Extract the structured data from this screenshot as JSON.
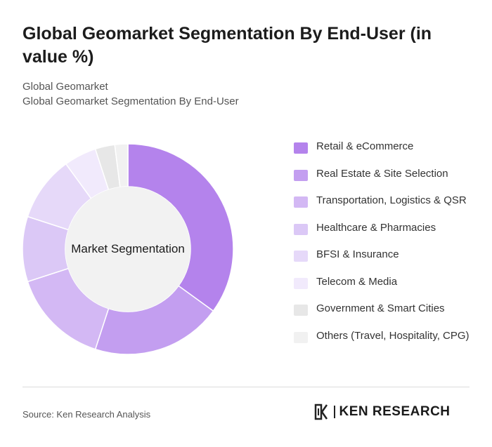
{
  "header": {
    "title": "Global Geomarket Segmentation By End-User (in value %)",
    "subtitle_1": "Global Geomarket",
    "subtitle_2": "Global Geomarket Segmentation By End-User"
  },
  "chart_data": {
    "type": "pie",
    "variant": "donut",
    "center_label": "Market Segmentation",
    "legend_position": "right",
    "categories": [
      "Retail & eCommerce",
      "Real Estate & Site Selection",
      "Transportation, Logistics & QSR",
      "Healthcare & Pharmacies",
      "BFSI & Insurance",
      "Telecom & Media",
      "Government & Smart Cities",
      "Others (Travel, Hospitality, CPG)"
    ],
    "values": [
      35,
      20,
      15,
      10,
      10,
      5,
      3,
      2
    ],
    "colors": [
      "#b483ec",
      "#c39ef0",
      "#d3b8f4",
      "#dbc8f6",
      "#e6d9f9",
      "#f1eafc",
      "#e7e7e7",
      "#f1f1f1"
    ]
  },
  "legend_items": [
    "Retail & eCommerce",
    "Real Estate & Site Selection",
    "Transportation, Logistics & QSR",
    "Healthcare & Pharmacies",
    "BFSI & Insurance",
    "Telecom & Media",
    "Government & Smart Cities",
    "Others (Travel, Hospitality, CPG)"
  ],
  "footer": {
    "source": "Source: Ken Research Analysis",
    "brand": "KEN RESEARCH",
    "brand_icon": "ken-research-logo-icon"
  }
}
